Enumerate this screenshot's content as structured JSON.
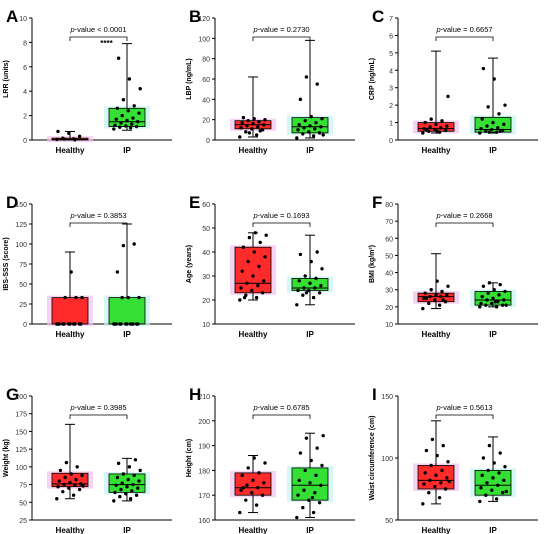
{
  "colors": {
    "healthy_box": "#ff2a2a",
    "ip_box": "#33e033",
    "healthy_glow": "#f3c1ee",
    "ip_glow": "#c4f5ef",
    "bar_outline": "#000000",
    "dot": "#000000"
  },
  "chart_data": [
    {
      "type": "box",
      "panel": "A",
      "ylabel": "LRR (units)",
      "ylim": [
        0,
        10
      ],
      "yticks": [
        "0",
        "2",
        "4",
        "6",
        "8",
        "10"
      ],
      "categories": [
        "Healthy",
        "IP"
      ],
      "stat_prefix": "p",
      "stat_suffix": "-value < 0.0001",
      "signif": "****",
      "boxes": [
        {
          "name": "Healthy",
          "min": 0.0,
          "q1": 0.0,
          "median": 0.05,
          "q3": 0.15,
          "max": 0.7,
          "points": [
            0.05,
            0.1,
            0.15,
            0.3,
            0.55,
            0.7,
            0.02,
            0.08
          ]
        },
        {
          "name": "IP",
          "min": 0.8,
          "q1": 1.1,
          "median": 1.5,
          "q3": 2.6,
          "max": 7.9,
          "points": [
            0.9,
            1.0,
            1.05,
            1.1,
            1.15,
            1.2,
            1.3,
            1.4,
            1.5,
            1.6,
            1.7,
            1.8,
            2.0,
            2.2,
            2.4,
            2.6,
            2.8,
            3.3,
            4.2,
            5.0,
            6.7
          ]
        }
      ]
    },
    {
      "type": "box",
      "panel": "B",
      "ylabel": "LBP (ng/mL)",
      "ylim": [
        0,
        120
      ],
      "yticks": [
        "0",
        "20",
        "40",
        "60",
        "80",
        "100",
        "120"
      ],
      "categories": [
        "Healthy",
        "IP"
      ],
      "stat_prefix": "p",
      "stat_suffix": "-value = 0.2730",
      "signif": "",
      "boxes": [
        {
          "name": "Healthy",
          "min": 3,
          "q1": 11,
          "median": 15,
          "q3": 19,
          "max": 62,
          "points": [
            3,
            5,
            8,
            10,
            11,
            12,
            13,
            14,
            15,
            16,
            17,
            18,
            19,
            20,
            21,
            22,
            9,
            7
          ]
        },
        {
          "name": "IP",
          "min": 2,
          "q1": 7,
          "median": 13,
          "q3": 22,
          "max": 98,
          "points": [
            2,
            4,
            6,
            7,
            8,
            10,
            11,
            12,
            13,
            14,
            15,
            17,
            19,
            21,
            23,
            40,
            55,
            62,
            5
          ]
        }
      ]
    },
    {
      "type": "box",
      "panel": "C",
      "ylabel": "CRP (ng/mL)",
      "ylim": [
        0,
        7
      ],
      "yticks": [
        "0",
        "1",
        "2",
        "3",
        "4",
        "5",
        "6",
        "7"
      ],
      "categories": [
        "Healthy",
        "IP"
      ],
      "stat_prefix": "p",
      "stat_suffix": "-value = 0.6657",
      "signif": "",
      "boxes": [
        {
          "name": "Healthy",
          "min": 0.4,
          "q1": 0.5,
          "median": 0.65,
          "q3": 1.0,
          "max": 5.1,
          "points": [
            0.4,
            0.45,
            0.5,
            0.55,
            0.6,
            0.65,
            0.7,
            0.75,
            0.8,
            0.9,
            1.0,
            1.1,
            1.2,
            2.5,
            0.5,
            0.6
          ]
        },
        {
          "name": "IP",
          "min": 0.4,
          "q1": 0.45,
          "median": 0.6,
          "q3": 1.3,
          "max": 4.7,
          "points": [
            0.4,
            0.45,
            0.5,
            0.55,
            0.6,
            0.65,
            0.7,
            0.8,
            0.9,
            1.0,
            1.2,
            1.5,
            1.9,
            2.0,
            3.5,
            4.1,
            0.5,
            0.45
          ]
        }
      ]
    },
    {
      "type": "box",
      "panel": "D",
      "ylabel": "IBS-SSS (score)",
      "ylim": [
        0,
        150
      ],
      "yticks": [
        "0",
        "25",
        "50",
        "75",
        "100",
        "125",
        "150"
      ],
      "categories": [
        "Healthy",
        "IP"
      ],
      "stat_prefix": "p",
      "stat_suffix": "-value = 0.3853",
      "signif": "",
      "boxes": [
        {
          "name": "Healthy",
          "min": 0,
          "q1": 0,
          "median": 0,
          "q3": 33,
          "max": 90,
          "points": [
            0,
            0,
            0,
            0,
            0,
            0,
            0,
            0,
            0,
            0,
            0,
            33,
            33,
            33,
            65
          ]
        },
        {
          "name": "IP",
          "min": 0,
          "q1": 0,
          "median": 0,
          "q3": 33,
          "max": 125,
          "points": [
            0,
            0,
            0,
            0,
            0,
            0,
            0,
            0,
            0,
            0,
            0,
            0,
            33,
            33,
            33,
            65,
            100,
            98
          ]
        }
      ]
    },
    {
      "type": "box",
      "panel": "E",
      "ylabel": "Age (years)",
      "ylim": [
        10,
        60
      ],
      "yticks": [
        "10",
        "20",
        "30",
        "40",
        "50",
        "60"
      ],
      "categories": [
        "Healthy",
        "IP"
      ],
      "stat_prefix": "p",
      "stat_suffix": "-value = 0.1693",
      "signif": "",
      "boxes": [
        {
          "name": "Healthy",
          "min": 20,
          "q1": 23,
          "median": 27,
          "q3": 42,
          "max": 48,
          "points": [
            20,
            21,
            22,
            23,
            24,
            25,
            26,
            27,
            28,
            30,
            32,
            34,
            36,
            38,
            40,
            42,
            44,
            46,
            47,
            48,
            21
          ]
        },
        {
          "name": "IP",
          "min": 18,
          "q1": 24,
          "median": 25,
          "q3": 29,
          "max": 47,
          "points": [
            18,
            21,
            22,
            23,
            24,
            24,
            25,
            25,
            26,
            27,
            28,
            29,
            30,
            33,
            36,
            39,
            40,
            23
          ]
        }
      ]
    },
    {
      "type": "box",
      "panel": "F",
      "ylabel": "BMI (kg/m²)",
      "ylim": [
        10,
        80
      ],
      "yticks": [
        "10",
        "20",
        "30",
        "40",
        "50",
        "60",
        "70",
        "80"
      ],
      "categories": [
        "Healthy",
        "IP"
      ],
      "stat_prefix": "p",
      "stat_suffix": "-value = 0.2668",
      "signif": "",
      "boxes": [
        {
          "name": "Healthy",
          "min": 19,
          "q1": 23,
          "median": 26,
          "q3": 28,
          "max": 51,
          "points": [
            19,
            21,
            22,
            23,
            24,
            25,
            26,
            26,
            27,
            27,
            28,
            29,
            30,
            32,
            35,
            25,
            24
          ]
        },
        {
          "name": "IP",
          "min": 20,
          "q1": 21,
          "median": 24,
          "q3": 29,
          "max": 34,
          "points": [
            20,
            20,
            21,
            21,
            22,
            22,
            23,
            24,
            24,
            25,
            26,
            27,
            28,
            29,
            30,
            32,
            33,
            34,
            21,
            23
          ]
        }
      ]
    },
    {
      "type": "box",
      "panel": "G",
      "ylabel": "Weight (kg)",
      "ylim": [
        25,
        200
      ],
      "yticks": [
        "25",
        "50",
        "75",
        "100",
        "125",
        "150",
        "175",
        "200"
      ],
      "categories": [
        "Healthy",
        "IP"
      ],
      "stat_prefix": "p",
      "stat_suffix": "-value = 0.3985",
      "signif": "",
      "boxes": [
        {
          "name": "Healthy",
          "min": 55,
          "q1": 72,
          "median": 76,
          "q3": 91,
          "max": 160,
          "points": [
            55,
            60,
            65,
            68,
            70,
            72,
            74,
            75,
            76,
            78,
            80,
            82,
            85,
            88,
            90,
            95,
            100,
            106,
            73
          ]
        },
        {
          "name": "IP",
          "min": 52,
          "q1": 64,
          "median": 75,
          "q3": 90,
          "max": 112,
          "points": [
            52,
            55,
            58,
            60,
            62,
            64,
            66,
            68,
            70,
            72,
            74,
            75,
            77,
            80,
            82,
            85,
            88,
            90,
            95,
            100,
            105,
            110
          ]
        }
      ]
    },
    {
      "type": "box",
      "panel": "H",
      "ylabel": "Height (cm)",
      "ylim": [
        160,
        210
      ],
      "yticks": [
        "160",
        "170",
        "180",
        "190",
        "200",
        "210"
      ],
      "categories": [
        "Healthy",
        "IP"
      ],
      "stat_prefix": "p",
      "stat_suffix": "-value = 0.6785",
      "signif": "",
      "boxes": [
        {
          "name": "Healthy",
          "min": 163,
          "q1": 170,
          "median": 173,
          "q3": 179,
          "max": 186,
          "points": [
            163,
            166,
            168,
            170,
            171,
            172,
            173,
            174,
            175,
            176,
            178,
            179,
            181,
            183,
            185,
            173
          ]
        },
        {
          "name": "IP",
          "min": 161,
          "q1": 168,
          "median": 174,
          "q3": 181,
          "max": 195,
          "points": [
            161,
            163,
            165,
            167,
            168,
            170,
            171,
            172,
            174,
            175,
            176,
            178,
            180,
            182,
            184,
            187,
            189,
            193,
            194,
            169
          ]
        }
      ]
    },
    {
      "type": "box",
      "panel": "I",
      "ylabel": "Waist circumference (cm)",
      "ylim": [
        50,
        150
      ],
      "yticks": [
        "50",
        "100",
        "150"
      ],
      "categories": [
        "Healthy",
        "IP"
      ],
      "stat_prefix": "p",
      "stat_suffix": "-value = 0.5613",
      "signif": "",
      "boxes": [
        {
          "name": "Healthy",
          "min": 63,
          "q1": 75,
          "median": 82,
          "q3": 94,
          "max": 130,
          "points": [
            63,
            68,
            72,
            75,
            77,
            79,
            80,
            82,
            84,
            86,
            88,
            90,
            94,
            97,
            102,
            106,
            110,
            115,
            81
          ]
        },
        {
          "name": "IP",
          "min": 65,
          "q1": 70,
          "median": 78,
          "q3": 90,
          "max": 117,
          "points": [
            65,
            67,
            70,
            72,
            74,
            76,
            78,
            80,
            82,
            84,
            86,
            88,
            90,
            93,
            96,
            100,
            104,
            110,
            73
          ]
        }
      ]
    }
  ]
}
